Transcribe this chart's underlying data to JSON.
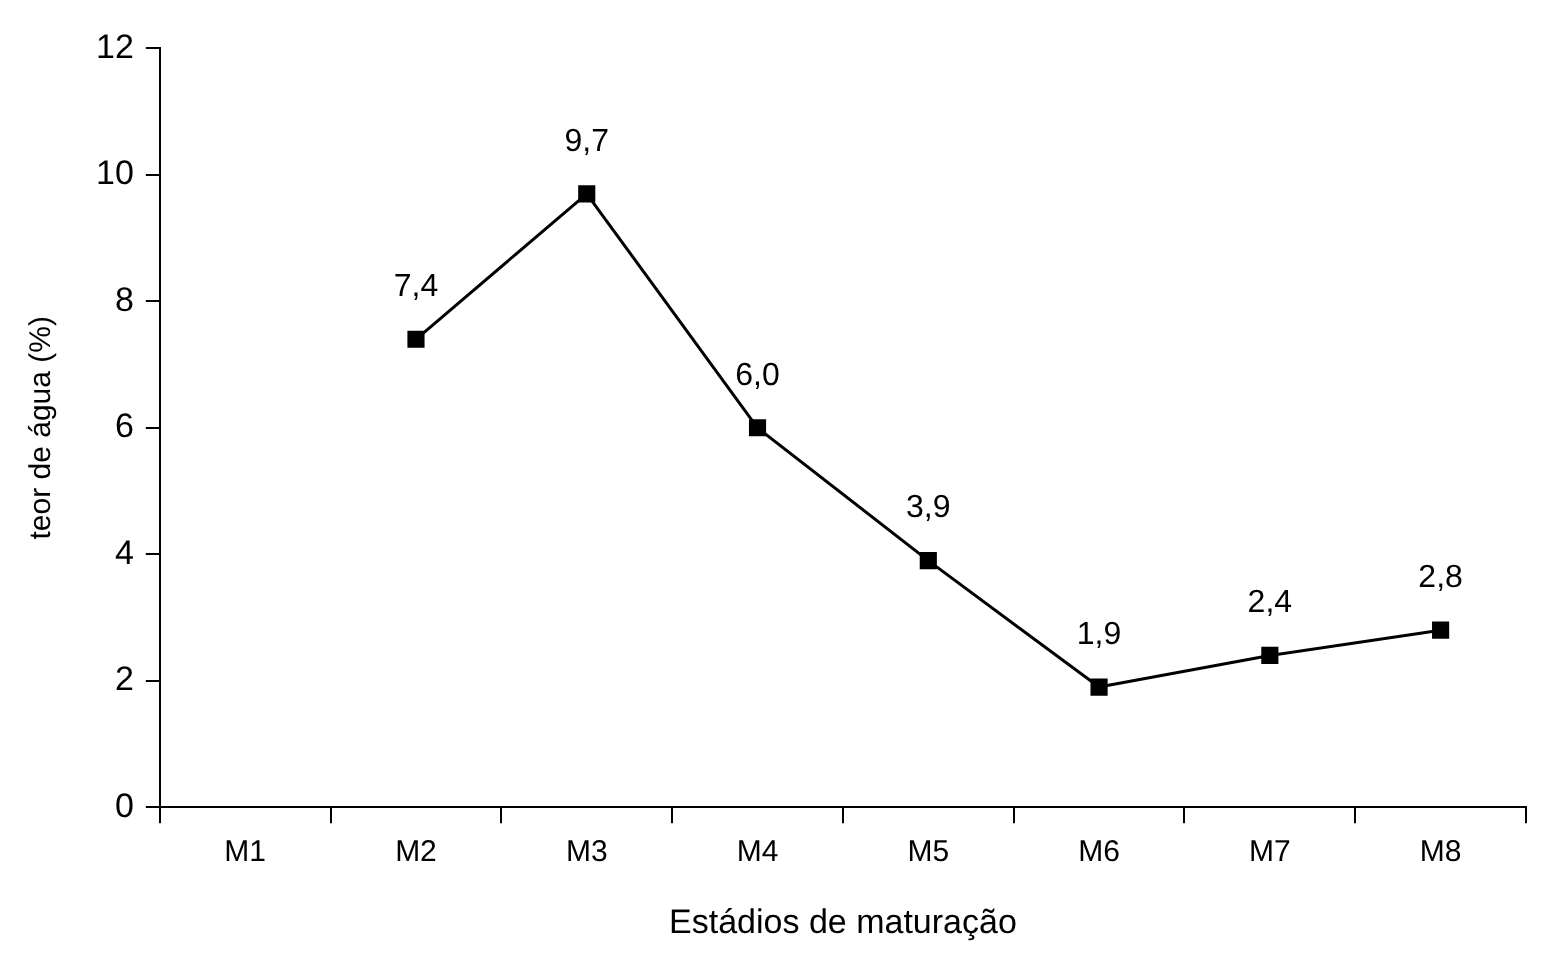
{
  "chart_data": {
    "type": "line",
    "xlabel": "Estádios de maturação",
    "ylabel": "teor de água (%)",
    "categories": [
      "M1",
      "M2",
      "M3",
      "M4",
      "M5",
      "M6",
      "M7",
      "M8"
    ],
    "series": [
      {
        "color": "#000000",
        "values": [
          null,
          7.4,
          9.7,
          6.0,
          3.9,
          1.9,
          2.4,
          2.8
        ],
        "value_labels": [
          null,
          "7,4",
          "9,7",
          "6,0",
          "3,9",
          "1,9",
          "2,4",
          "2,8"
        ]
      }
    ],
    "ylim": [
      0,
      12
    ],
    "yticks": [
      0,
      2,
      4,
      6,
      8,
      10,
      12
    ],
    "marker": "square",
    "line_style": "solid"
  }
}
